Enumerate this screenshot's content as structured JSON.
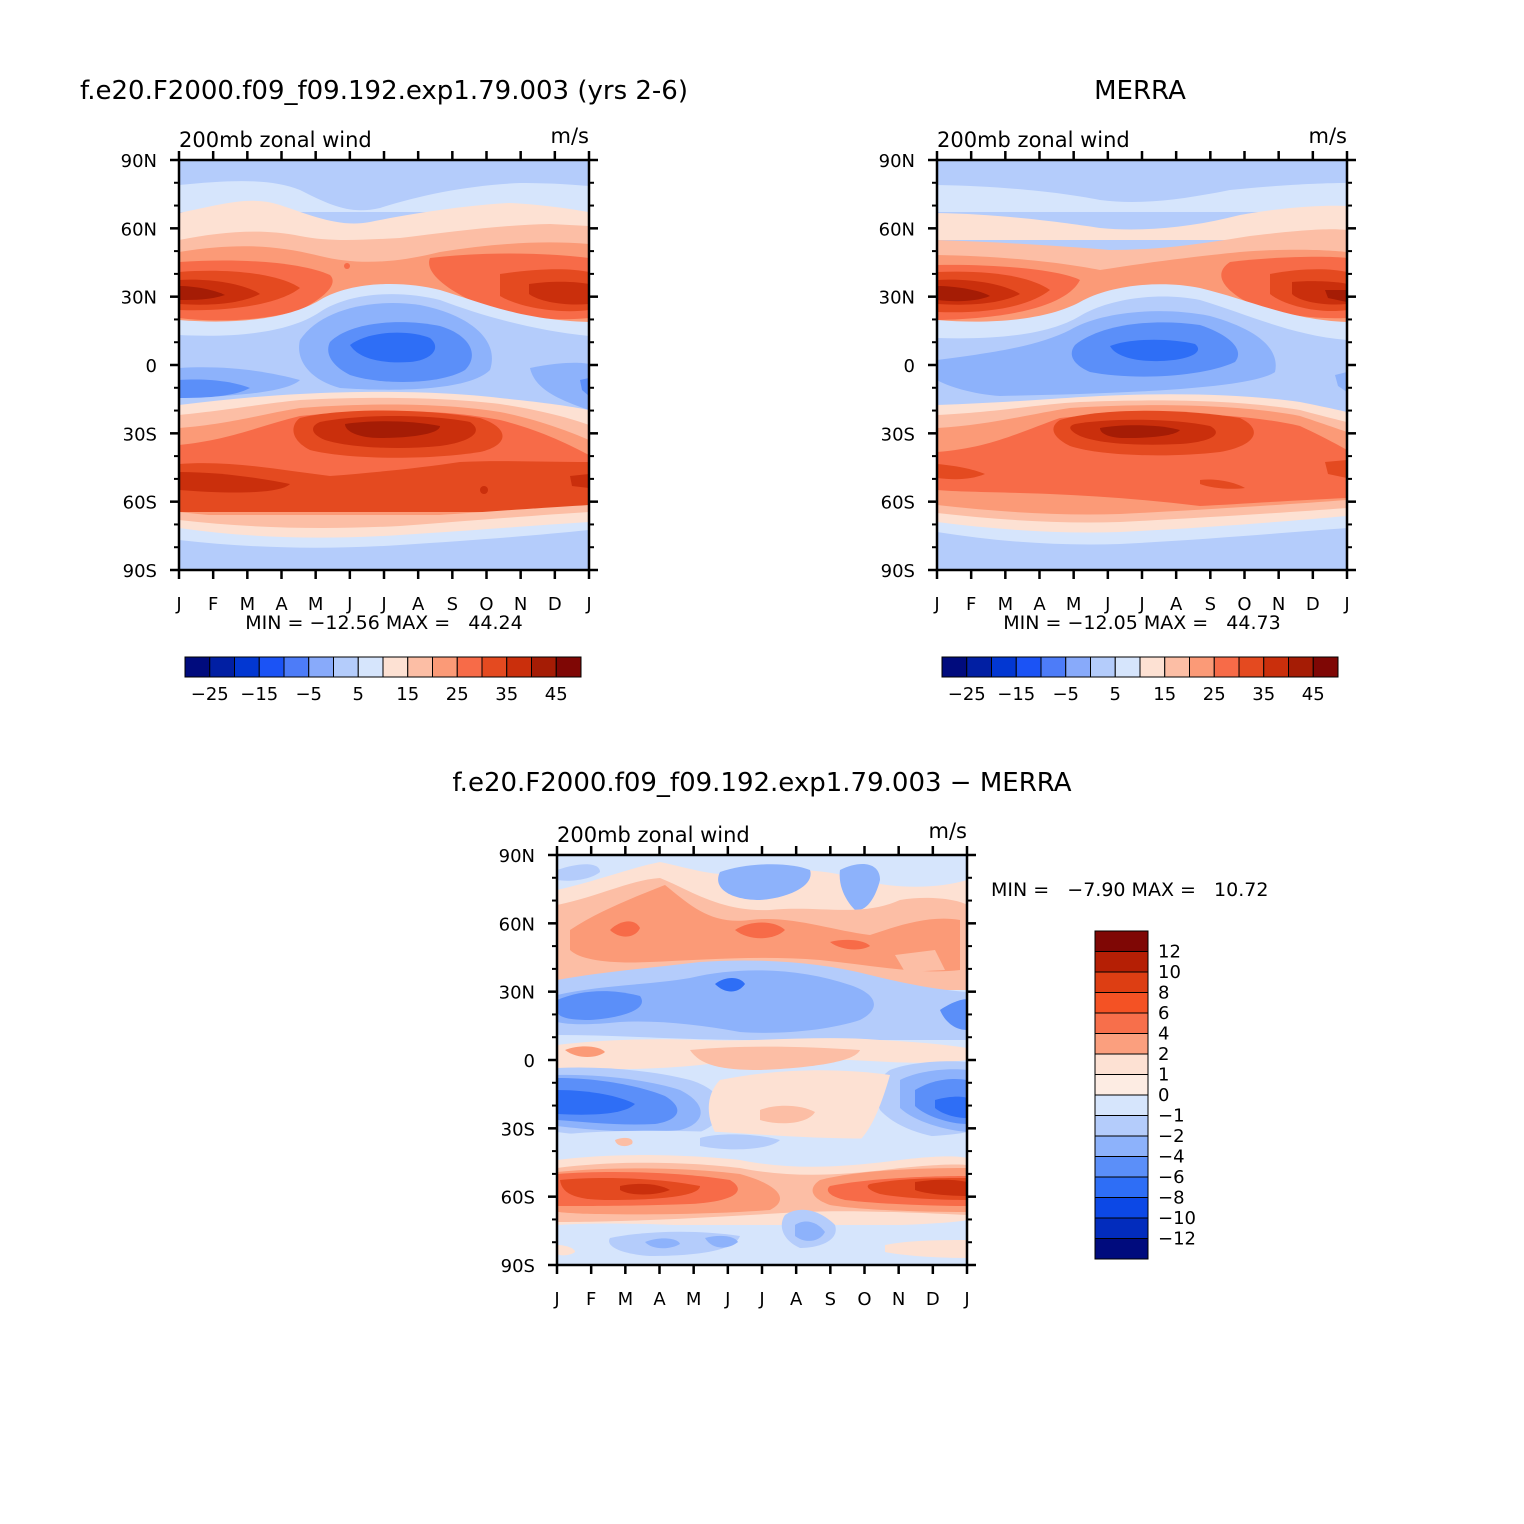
{
  "chart_data": [
    {
      "type": "heatmap",
      "title": "f.e20.F2000.f09_f09.192.exp1.79.003 (yrs 2-6)",
      "subtitle_left": "200mb zonal wind",
      "units": "m/s",
      "x_ticks": [
        "J",
        "F",
        "M",
        "A",
        "M",
        "J",
        "J",
        "A",
        "S",
        "O",
        "N",
        "D",
        "J"
      ],
      "y_ticks": [
        "90N",
        "60N",
        "30N",
        "0",
        "30S",
        "60S",
        "90S"
      ],
      "ylim": [
        -90,
        90
      ],
      "stats": "MIN = −12.56 MAX =   44.24",
      "min": -12.56,
      "max": 44.24,
      "colorbar_labels": [
        "−25",
        "−15",
        "−5",
        "5",
        "15",
        "25",
        "35",
        "45"
      ],
      "features": [
        {
          "name": "NH jet",
          "lat": 30,
          "value_winter": 44,
          "value_summer": 15
        },
        {
          "name": "SH jet",
          "lat": -30,
          "value_winter": 42,
          "value_summer": 35
        },
        {
          "name": "SH polar jet",
          "lat": -55,
          "value": 35
        },
        {
          "name": "tropical easterlies",
          "lat": 5,
          "month": "Jul",
          "value": -12.56
        }
      ]
    },
    {
      "type": "heatmap",
      "title": "MERRA",
      "subtitle_left": "200mb zonal wind",
      "units": "m/s",
      "x_ticks": [
        "J",
        "F",
        "M",
        "A",
        "M",
        "J",
        "J",
        "A",
        "S",
        "O",
        "N",
        "D",
        "J"
      ],
      "y_ticks": [
        "90N",
        "60N",
        "30N",
        "0",
        "30S",
        "60S",
        "90S"
      ],
      "ylim": [
        -90,
        90
      ],
      "stats": "MIN = −12.05 MAX =   44.73",
      "min": -12.05,
      "max": 44.73,
      "colorbar_labels": [
        "−25",
        "−15",
        "−5",
        "5",
        "15",
        "25",
        "35",
        "45"
      ],
      "features": [
        {
          "name": "NH jet",
          "lat": 30,
          "value_winter": 44,
          "value_summer": 15
        },
        {
          "name": "SH jet",
          "lat": -30,
          "value_winter": 42,
          "value_summer": 35
        },
        {
          "name": "SH polar jet",
          "lat": -50,
          "value": 30
        },
        {
          "name": "tropical easterlies",
          "lat": 5,
          "month": "Jul",
          "value": -12.05
        }
      ]
    },
    {
      "type": "heatmap",
      "title": "f.e20.F2000.f09_f09.192.exp1.79.003 − MERRA",
      "subtitle_left": "200mb zonal wind",
      "units": "m/s",
      "x_ticks": [
        "J",
        "F",
        "M",
        "A",
        "M",
        "J",
        "J",
        "A",
        "S",
        "O",
        "N",
        "D",
        "J"
      ],
      "y_ticks": [
        "90N",
        "60N",
        "30N",
        "0",
        "30S",
        "60S",
        "90S"
      ],
      "ylim": [
        -90,
        90
      ],
      "stats": "MIN =   −7.90 MAX =   10.72",
      "min": -7.9,
      "max": 10.72,
      "colorbar_labels": [
        "12",
        "10",
        "8",
        "6",
        "4",
        "2",
        "1",
        "0",
        "−1",
        "−2",
        "−4",
        "−6",
        "−8",
        "−10",
        "−12"
      ]
    }
  ]
}
